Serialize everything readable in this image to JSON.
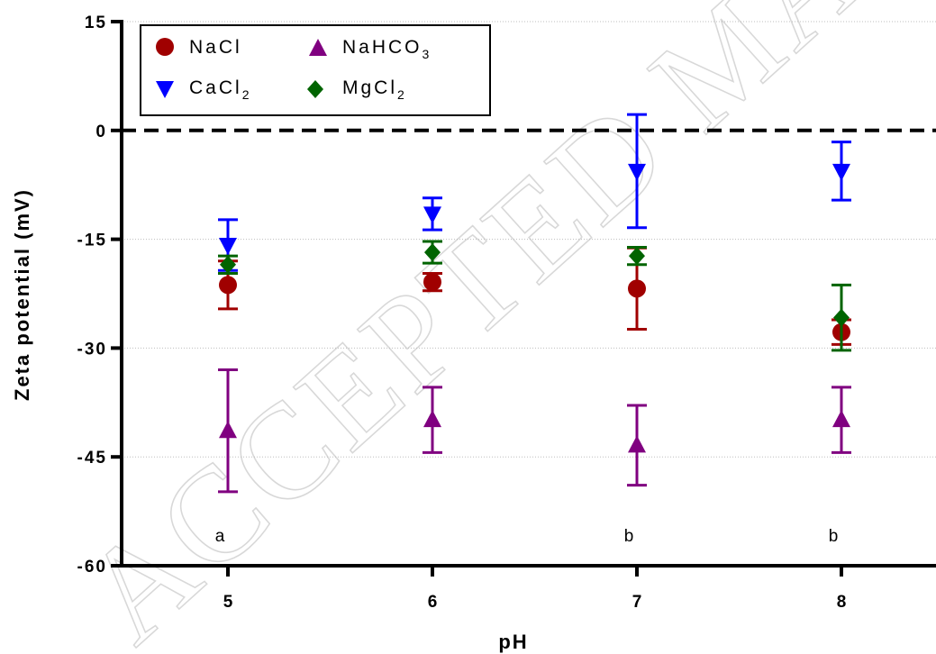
{
  "chart_data": {
    "type": "scatter",
    "title": "",
    "xlabel": "pH",
    "ylabel": "Zeta potential (mV)",
    "categories": [
      "5",
      "6",
      "7",
      "8"
    ],
    "ylim": [
      -60,
      15
    ],
    "yticks": [
      "15",
      "0",
      "-15",
      "-30",
      "-45",
      "-60"
    ],
    "grid": "horizontal dotted",
    "reference_line": {
      "y": 0,
      "style": "dashed"
    },
    "legend_placement": "top-left",
    "series": [
      {
        "name": "NaCl",
        "label_main": "NaCl",
        "label_sub": "",
        "marker": "circle",
        "color": "#a00000",
        "values": [
          -21.3,
          -20.9,
          -21.8,
          -27.8
        ],
        "err": [
          3.3,
          1.2,
          5.6,
          1.7
        ]
      },
      {
        "name": "NaHCO3",
        "label_main": "NaHCO",
        "label_sub": "3",
        "marker": "triangle-up",
        "color": "#800080",
        "values": [
          -41.4,
          -39.9,
          -43.4,
          -39.9
        ],
        "err": [
          8.4,
          4.5,
          5.5,
          4.5
        ]
      },
      {
        "name": "CaCl2",
        "label_main": "CaCl",
        "label_sub": "2",
        "marker": "triangle-down",
        "color": "#0000ff",
        "values": [
          -15.8,
          -11.5,
          -5.6,
          -5.6
        ],
        "err": [
          3.5,
          2.2,
          7.8,
          4.0
        ]
      },
      {
        "name": "MgCl2",
        "label_main": "MgCl",
        "label_sub": "2",
        "marker": "diamond",
        "color": "#006400",
        "values": [
          -18.5,
          -16.8,
          -17.3,
          -25.8
        ],
        "err": [
          1.2,
          1.5,
          1.2,
          4.5
        ]
      }
    ],
    "annotations": [
      {
        "x": "5",
        "text": "a"
      },
      {
        "x": "7",
        "text": "b"
      },
      {
        "x": "8",
        "text": "b"
      }
    ]
  },
  "watermark": "ACCEPTED MANUSCRIPT"
}
